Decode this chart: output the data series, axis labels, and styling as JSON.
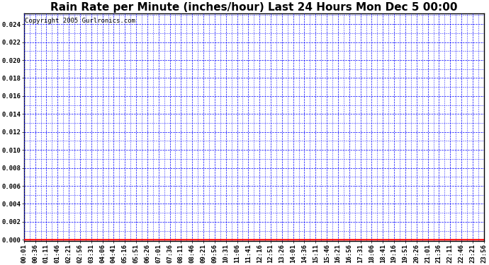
{
  "title": "Rain Rate per Minute (inches/hour) Last 24 Hours Mon Dec 5 00:00",
  "copyright": "Copyright 2005 Gurlronics.com",
  "yticks": [
    0.0,
    0.002,
    0.004,
    0.006,
    0.008,
    0.01,
    0.012,
    0.014,
    0.016,
    0.018,
    0.02,
    0.022,
    0.024
  ],
  "xtick_labels": [
    "00:01",
    "00:36",
    "01:11",
    "01:46",
    "02:21",
    "02:56",
    "03:31",
    "04:06",
    "04:41",
    "05:16",
    "05:51",
    "06:26",
    "07:01",
    "07:36",
    "08:11",
    "08:46",
    "09:21",
    "09:56",
    "10:31",
    "11:06",
    "11:41",
    "12:16",
    "12:51",
    "13:26",
    "14:01",
    "14:36",
    "15:11",
    "15:46",
    "16:21",
    "16:56",
    "17:31",
    "18:06",
    "18:41",
    "19:16",
    "19:51",
    "20:26",
    "21:01",
    "21:36",
    "22:11",
    "22:46",
    "23:21",
    "23:56"
  ],
  "line_color": "#ff0000",
  "grid_color": "#0000ff",
  "background_color": "#ffffff",
  "title_fontsize": 11,
  "tick_fontsize": 6.5,
  "copyright_fontsize": 6.5
}
